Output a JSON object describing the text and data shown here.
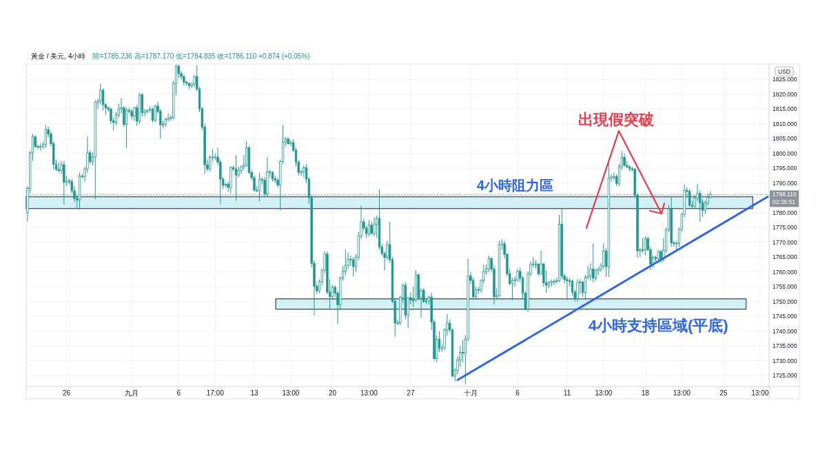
{
  "chart_data": {
    "type": "candlestick",
    "title": "黃金 / 美元, 4小時",
    "subtitle": "開=1785.236 高=1787.170 低=1784.835 收=1786.110 +0.874 (+0.05%)",
    "ylabel": "USD",
    "categories": [
      null,
      null,
      null,
      null,
      null,
      null,
      null,
      null,
      null,
      null,
      null,
      null,
      null,
      null,
      null,
      "26",
      null,
      null,
      null,
      null,
      null,
      null,
      null,
      null,
      null,
      null,
      null,
      null,
      null,
      null,
      null,
      null,
      null,
      null,
      null,
      null,
      null,
      null,
      null,
      null,
      "九月",
      null,
      null,
      null,
      null,
      null,
      null,
      null,
      null,
      null,
      null,
      null,
      null,
      null,
      null,
      null,
      null,
      null,
      "6",
      null,
      null,
      null,
      null,
      null,
      null,
      null,
      null,
      null,
      null,
      null,
      null,
      null,
      "17:00",
      null,
      null,
      null,
      null,
      null,
      null,
      null,
      null,
      null,
      null,
      null,
      null,
      null,
      null,
      "13",
      null,
      null,
      null,
      null,
      null,
      null,
      null,
      null,
      null,
      null,
      null,
      null,
      null,
      "13:00",
      null,
      null,
      null,
      null,
      null,
      null,
      null,
      null,
      null,
      null,
      null,
      null,
      null,
      null,
      null,
      "20",
      null,
      null,
      null,
      null,
      null,
      null,
      null,
      null,
      null,
      null,
      null,
      null,
      null,
      "13:00",
      null,
      null,
      null,
      null,
      null,
      null,
      null,
      null,
      null,
      null,
      null,
      null,
      null,
      null,
      null,
      "27",
      null,
      null,
      null,
      null,
      null,
      null,
      null,
      null,
      null,
      null,
      null,
      null,
      null,
      null,
      null,
      null,
      null,
      null,
      null,
      null,
      null,
      null,
      "十月",
      null,
      null,
      null,
      null,
      null,
      null,
      null,
      null,
      null,
      null,
      null,
      null,
      null,
      null,
      null,
      null,
      null,
      "6",
      null,
      null,
      null,
      null,
      null,
      null,
      null,
      null,
      null,
      null,
      null,
      null,
      null,
      null,
      null,
      null,
      null,
      null,
      "11",
      null,
      null,
      null,
      null,
      null,
      null,
      null,
      null,
      null,
      null,
      null,
      null,
      null,
      "13:00",
      null,
      null,
      null,
      null,
      null,
      null,
      null,
      null,
      null,
      null,
      null,
      null,
      null,
      null,
      null,
      "18",
      null,
      null,
      null,
      null,
      null,
      null,
      null,
      null,
      null,
      null,
      null,
      null,
      null,
      "13:00",
      null,
      null,
      null,
      null,
      null,
      null,
      null,
      null,
      null,
      null,
      null,
      null,
      null,
      null,
      null,
      "25",
      null,
      null,
      null,
      null,
      null,
      null,
      null,
      null,
      null,
      null,
      null,
      null,
      null,
      "13:00",
      null,
      null,
      null
    ],
    "ylim": [
      1721.3,
      1830.2
    ],
    "yticks": [
      {
        "value": 1725,
        "label": "1725.000"
      },
      {
        "value": 1730,
        "label": "1730.000"
      },
      {
        "value": 1735,
        "label": "1735.000"
      },
      {
        "value": 1740,
        "label": "1740.000"
      },
      {
        "value": 1745,
        "label": "1745.000"
      },
      {
        "value": 1750,
        "label": "1750.000"
      },
      {
        "value": 1755,
        "label": "1755.000"
      },
      {
        "value": 1760,
        "label": "1760.000"
      },
      {
        "value": 1765,
        "label": "1765.000"
      },
      {
        "value": 1770,
        "label": "1770.000"
      },
      {
        "value": 1775,
        "label": "1775.000"
      },
      {
        "value": 1780,
        "label": "1780.000"
      },
      {
        "value": 1785,
        "label": null
      },
      {
        "value": 1790,
        "label": "1790.000"
      },
      {
        "value": 1795,
        "label": "1795.000"
      },
      {
        "value": 1800,
        "label": "1800.000"
      },
      {
        "value": 1805,
        "label": "1805.000"
      },
      {
        "value": 1810,
        "label": "1810.000"
      },
      {
        "value": 1815,
        "label": "1815.000"
      },
      {
        "value": 1820,
        "label": "1820.000"
      },
      {
        "value": 1825,
        "label": "1825.000"
      }
    ],
    "grid": true,
    "bands": [
      {
        "axis": "y",
        "from": 1781.4,
        "to": 1785.4,
        "label": "4小時阻力區",
        "color": "#cdeff5"
      },
      {
        "axis": "y",
        "from": 1747.4,
        "to": 1750.9,
        "label": "4小時支持區域(平底)",
        "color": "#cdeff5"
      }
    ],
    "ref_lines": [
      {
        "axis": "y",
        "value": 1786.11,
        "label": "1786.110\n02:36:51",
        "color": "#8f929a",
        "line_style": "dotted"
      }
    ],
    "annotations": [
      "出現假突破"
    ],
    "series": [
      {
        "color": "#1d9890",
        "ohlc": [
          [
            1780,
            1789,
            1777,
            1788.2
          ],
          [
            1788.2,
            1800.8,
            1786.5,
            1800.2
          ],
          [
            1800.2,
            1806.6,
            1797.5,
            1805.6
          ],
          [
            1805.6,
            1806.2,
            1801.8,
            1802.4
          ],
          [
            1802.4,
            1803,
            1801.5,
            1802.2
          ],
          [
            1802.2,
            1803.5,
            1801,
            1802.4
          ],
          [
            1802.4,
            1804,
            1801.5,
            1803
          ],
          [
            1803,
            1809.7,
            1801.8,
            1808.1
          ],
          [
            1808.1,
            1809,
            1805.5,
            1806.6
          ],
          [
            1806.6,
            1807.5,
            1802.5,
            1803.3
          ],
          [
            1803.3,
            1804,
            1794.6,
            1796.3
          ],
          [
            1796.3,
            1798,
            1794.2,
            1794.6
          ],
          [
            1794.6,
            1797,
            1793.5,
            1794.2
          ],
          [
            1794.2,
            1797.5,
            1793,
            1796.2
          ],
          [
            1796.2,
            1797.5,
            1782.7,
            1790.3
          ],
          [
            1790.3,
            1792.5,
            1789,
            1790.7
          ],
          [
            1790.7,
            1791.5,
            1789.5,
            1790.5
          ],
          [
            1790.5,
            1791.5,
            1786.5,
            1787.4
          ],
          [
            1787.4,
            1789,
            1783.5,
            1784.8
          ],
          [
            1784.8,
            1786,
            1781.2,
            1784.3
          ],
          [
            1784.3,
            1793.5,
            1781,
            1792.4
          ],
          [
            1792.4,
            1793,
            1791.5,
            1792.2
          ],
          [
            1792.2,
            1795.5,
            1790.5,
            1794.8
          ],
          [
            1794.8,
            1805.7,
            1793.5,
            1800.2
          ],
          [
            1800.2,
            1801,
            1796.5,
            1797.3
          ],
          [
            1797.3,
            1800.5,
            1796,
            1798.8
          ],
          [
            1798.8,
            1818,
            1784.5,
            1817.3
          ],
          [
            1817.3,
            1818.5,
            1815,
            1817.7
          ],
          [
            1817.7,
            1823.5,
            1816.5,
            1821.3
          ],
          [
            1821.3,
            1822,
            1814.5,
            1816.5
          ],
          [
            1816.5,
            1817,
            1813,
            1815.4
          ],
          [
            1815.4,
            1816,
            1814,
            1815
          ],
          [
            1815,
            1815.5,
            1810,
            1811
          ],
          [
            1811,
            1812,
            1807.8,
            1810.5
          ],
          [
            1810.5,
            1814,
            1809.5,
            1813
          ],
          [
            1813,
            1816.8,
            1812,
            1815.1
          ],
          [
            1815.1,
            1818.7,
            1813.5,
            1815.4
          ],
          [
            1815.4,
            1816,
            1809,
            1809.8
          ],
          [
            1809.8,
            1815.5,
            1801.8,
            1814.6
          ],
          [
            1814.6,
            1815.5,
            1813.5,
            1814.2
          ],
          [
            1814.2,
            1815,
            1811.5,
            1812.6
          ],
          [
            1812.6,
            1815.8,
            1811,
            1815.4
          ],
          [
            1815.4,
            1816.5,
            1809.3,
            1810.9
          ],
          [
            1810.9,
            1820.5,
            1810,
            1819.8
          ],
          [
            1819.8,
            1820.5,
            1812.5,
            1813.8
          ],
          [
            1813.8,
            1815,
            1812.5,
            1814.2
          ],
          [
            1814.2,
            1815,
            1813.5,
            1814.6
          ],
          [
            1814.6,
            1816,
            1813.8,
            1815
          ],
          [
            1815,
            1815.5,
            1810.5,
            1811.2
          ],
          [
            1811.2,
            1816.5,
            1810.5,
            1816
          ],
          [
            1816,
            1817.5,
            1813.5,
            1814.2
          ],
          [
            1814.2,
            1815,
            1805,
            1809.7
          ],
          [
            1809.7,
            1811,
            1808.5,
            1809.9
          ],
          [
            1809.9,
            1812,
            1809,
            1811.5
          ],
          [
            1811.5,
            1813.5,
            1810.8,
            1811.9
          ],
          [
            1811.9,
            1813,
            1811,
            1812.1
          ],
          [
            1812.1,
            1824.5,
            1811.5,
            1823.7
          ],
          [
            1823.7,
            1830,
            1819.6,
            1829.5
          ],
          [
            1829.5,
            1830,
            1825.5,
            1827
          ],
          [
            1827,
            1827.8,
            1825,
            1826
          ],
          [
            1826,
            1826.5,
            1823,
            1824.1
          ],
          [
            1824.1,
            1824.5,
            1823,
            1823.7
          ],
          [
            1823.7,
            1824,
            1821.8,
            1822.9
          ],
          [
            1822.9,
            1824,
            1822,
            1823.5
          ],
          [
            1823.5,
            1826.5,
            1822.5,
            1826
          ],
          [
            1826,
            1829.8,
            1821,
            1821.8
          ],
          [
            1821.8,
            1822.5,
            1814,
            1815.1
          ],
          [
            1815.1,
            1815.8,
            1808,
            1808.9
          ],
          [
            1808.9,
            1810,
            1793,
            1796.2
          ],
          [
            1796.2,
            1798,
            1794,
            1794.8
          ],
          [
            1794.8,
            1799.5,
            1794,
            1798.7
          ],
          [
            1798.7,
            1801.5,
            1797.5,
            1798.8
          ],
          [
            1798.8,
            1800,
            1797.8,
            1798.8
          ],
          [
            1798.8,
            1802,
            1796,
            1797.1
          ],
          [
            1797.1,
            1798,
            1783,
            1791.3
          ],
          [
            1791.3,
            1792,
            1788,
            1789.3
          ],
          [
            1789.3,
            1790,
            1788.5,
            1789.6
          ],
          [
            1789.6,
            1790.5,
            1787,
            1788.5
          ],
          [
            1788.5,
            1795.8,
            1786.5,
            1795.2
          ],
          [
            1795.2,
            1796,
            1794,
            1794.8
          ],
          [
            1794.8,
            1799.5,
            1784,
            1792.7
          ],
          [
            1792.7,
            1795.5,
            1792,
            1794.2
          ],
          [
            1794.2,
            1796,
            1793,
            1795.5
          ],
          [
            1795.5,
            1799.5,
            1794.5,
            1796
          ],
          [
            1796,
            1804.2,
            1795.5,
            1801.9
          ],
          [
            1801.9,
            1802.5,
            1793,
            1793.6
          ],
          [
            1793.6,
            1794.5,
            1791,
            1791.8
          ],
          [
            1791.8,
            1792.5,
            1787,
            1787.6
          ],
          [
            1787.6,
            1789,
            1787,
            1787.4
          ],
          [
            1787.4,
            1793.5,
            1783.8,
            1791.3
          ],
          [
            1791.3,
            1792,
            1789.5,
            1791
          ],
          [
            1791,
            1792,
            1785.5,
            1786.3
          ],
          [
            1786.3,
            1798.8,
            1785.5,
            1793.8
          ],
          [
            1793.8,
            1794.5,
            1792,
            1793.6
          ],
          [
            1793.6,
            1794,
            1790.5,
            1791.5
          ],
          [
            1791.5,
            1792.5,
            1790,
            1791
          ],
          [
            1791,
            1791.8,
            1788.5,
            1789.3
          ],
          [
            1789.3,
            1798,
            1780.8,
            1797.3
          ],
          [
            1797.3,
            1809.7,
            1796.5,
            1803.9
          ],
          [
            1803.9,
            1805.5,
            1802.5,
            1804.9
          ],
          [
            1804.9,
            1805.5,
            1803,
            1803.3
          ],
          [
            1803.3,
            1804.5,
            1802.5,
            1803.7
          ],
          [
            1803.7,
            1804.8,
            1800.5,
            1801
          ],
          [
            1801,
            1802,
            1795.5,
            1797.1
          ],
          [
            1797.1,
            1797.8,
            1792.5,
            1793.6
          ],
          [
            1793.6,
            1794.5,
            1792.5,
            1793.8
          ],
          [
            1793.8,
            1796,
            1792,
            1795.2
          ],
          [
            1795.2,
            1796.5,
            1790,
            1791.3
          ],
          [
            1791.3,
            1792,
            1783,
            1785.1
          ],
          [
            1785.1,
            1785.8,
            1761.5,
            1762.9
          ],
          [
            1762.9,
            1764,
            1745.4,
            1755.1
          ],
          [
            1755.1,
            1756,
            1752.5,
            1753.6
          ],
          [
            1753.6,
            1757.5,
            1752.8,
            1756.7
          ],
          [
            1756.7,
            1761,
            1755.5,
            1760.6
          ],
          [
            1760.6,
            1767,
            1759.5,
            1766
          ],
          [
            1766,
            1767,
            1752.5,
            1753.2
          ],
          [
            1753.2,
            1757.5,
            1747.4,
            1751.7
          ],
          [
            1751.7,
            1755.5,
            1750.5,
            1754.8
          ],
          [
            1754.8,
            1755.5,
            1751.5,
            1752.8
          ],
          [
            1752.8,
            1753.5,
            1742.3,
            1748.9
          ],
          [
            1748.9,
            1758.5,
            1747.5,
            1757.9
          ],
          [
            1757.9,
            1762,
            1757,
            1760.2
          ],
          [
            1760.2,
            1767.4,
            1759,
            1762.2
          ],
          [
            1762.2,
            1766.5,
            1761,
            1764.3
          ],
          [
            1764.3,
            1765.5,
            1762,
            1764.1
          ],
          [
            1764.1,
            1765,
            1758.5,
            1761.8
          ],
          [
            1761.8,
            1766,
            1760,
            1764.9
          ],
          [
            1764.9,
            1773.5,
            1764,
            1772.1
          ],
          [
            1772.1,
            1782.3,
            1771,
            1776.9
          ],
          [
            1776.9,
            1778,
            1774,
            1774.8
          ],
          [
            1774.8,
            1775.5,
            1771.5,
            1772.9
          ],
          [
            1772.9,
            1777.5,
            1772,
            1775.8
          ],
          [
            1775.8,
            1777,
            1772.5,
            1773
          ],
          [
            1773,
            1778.5,
            1772,
            1776
          ],
          [
            1776,
            1779,
            1771.5,
            1778.1
          ],
          [
            1778.1,
            1787.8,
            1767.5,
            1768.4
          ],
          [
            1768.4,
            1769.5,
            1765.5,
            1766.2
          ],
          [
            1766.2,
            1767,
            1760.5,
            1764.9
          ],
          [
            1764.9,
            1770.5,
            1764,
            1769.2
          ],
          [
            1769.2,
            1776.9,
            1763,
            1764.1
          ],
          [
            1764.1,
            1765,
            1749.5,
            1750.1
          ],
          [
            1750.1,
            1751,
            1738.1,
            1742.7
          ],
          [
            1742.7,
            1744,
            1742,
            1742.8
          ],
          [
            1742.8,
            1752,
            1742,
            1751.4
          ],
          [
            1751.4,
            1756,
            1749.5,
            1755.5
          ],
          [
            1755.5,
            1756.5,
            1744,
            1745.4
          ],
          [
            1745.4,
            1751.5,
            1741,
            1751.3
          ],
          [
            1751.3,
            1753,
            1749,
            1750.5
          ],
          [
            1750.5,
            1755,
            1748,
            1750.4
          ],
          [
            1750.4,
            1760.5,
            1750,
            1759
          ],
          [
            1759,
            1759.5,
            1750.5,
            1751.3
          ],
          [
            1751.3,
            1754.5,
            1744.5,
            1753.8
          ],
          [
            1753.8,
            1754.5,
            1749.5,
            1750
          ],
          [
            1750,
            1751,
            1749,
            1750.1
          ],
          [
            1750.1,
            1752,
            1749,
            1751.5
          ],
          [
            1751.5,
            1753,
            1740.4,
            1743.1
          ],
          [
            1743.1,
            1744,
            1730,
            1730.7
          ],
          [
            1730.7,
            1738.5,
            1729.5,
            1737.3
          ],
          [
            1737.3,
            1740,
            1733,
            1734.2
          ],
          [
            1734.2,
            1735.5,
            1733,
            1734.3
          ],
          [
            1734.3,
            1741,
            1733.5,
            1740.4
          ],
          [
            1740.4,
            1745.8,
            1738.5,
            1742.7
          ],
          [
            1742.7,
            1744,
            1739.5,
            1740.4
          ],
          [
            1740.4,
            1741,
            1724.5,
            1724.8
          ],
          [
            1724.8,
            1727.5,
            1723,
            1726.8
          ],
          [
            1726.8,
            1731.5,
            1725.5,
            1730.3
          ],
          [
            1730.3,
            1735,
            1728,
            1732.8
          ],
          [
            1732.8,
            1737,
            1729.5,
            1732.5
          ],
          [
            1732.5,
            1738.5,
            1722,
            1737.3
          ],
          [
            1737.3,
            1764.5,
            1736.5,
            1758.6
          ],
          [
            1758.6,
            1760,
            1756,
            1757.1
          ],
          [
            1757.1,
            1758,
            1750.5,
            1751.6
          ],
          [
            1751.6,
            1755,
            1750.5,
            1754
          ],
          [
            1754,
            1755,
            1752.5,
            1753.8
          ],
          [
            1753.8,
            1757.5,
            1753,
            1757.1
          ],
          [
            1757.1,
            1762.5,
            1756,
            1760
          ],
          [
            1760,
            1762.5,
            1759,
            1761
          ],
          [
            1761,
            1765.5,
            1760,
            1764.5
          ],
          [
            1764.5,
            1765,
            1760,
            1761
          ],
          [
            1761,
            1762,
            1749,
            1751.6
          ],
          [
            1751.6,
            1754.5,
            1751,
            1752
          ],
          [
            1752,
            1770.5,
            1751.5,
            1769.1
          ],
          [
            1769.1,
            1771,
            1767.5,
            1769.5
          ],
          [
            1769.5,
            1770.5,
            1764.5,
            1765.9
          ],
          [
            1765.9,
            1766.5,
            1758.5,
            1759.4
          ],
          [
            1759.4,
            1761,
            1755.5,
            1756.1
          ],
          [
            1756.1,
            1758,
            1750.5,
            1757.1
          ],
          [
            1757.1,
            1758.5,
            1755,
            1757.3
          ],
          [
            1757.3,
            1761,
            1756.5,
            1760.2
          ],
          [
            1760.2,
            1761.5,
            1756.5,
            1757.9
          ],
          [
            1757.9,
            1758.5,
            1751,
            1752.8
          ],
          [
            1752.8,
            1753.5,
            1747,
            1747.4
          ],
          [
            1747.4,
            1760,
            1746.5,
            1759.4
          ],
          [
            1759.4,
            1763.5,
            1758.5,
            1762.5
          ],
          [
            1762.5,
            1765,
            1761.5,
            1762.7
          ],
          [
            1762.7,
            1764,
            1761,
            1762.6
          ],
          [
            1762.6,
            1763,
            1758.5,
            1759.4
          ],
          [
            1759.4,
            1767.2,
            1759,
            1762.7
          ],
          [
            1762.7,
            1763,
            1755,
            1756.3
          ],
          [
            1756.3,
            1760.5,
            1753,
            1755.5
          ],
          [
            1755.5,
            1757,
            1754.5,
            1756.3
          ],
          [
            1756.3,
            1757.5,
            1755,
            1756.7
          ],
          [
            1756.7,
            1757.5,
            1755.5,
            1756.8
          ],
          [
            1756.8,
            1758,
            1756,
            1757
          ],
          [
            1757,
            1779.2,
            1756.5,
            1776.1
          ],
          [
            1776.1,
            1781.6,
            1757.5,
            1758.6
          ],
          [
            1758.6,
            1759.5,
            1756,
            1757.4
          ],
          [
            1757.4,
            1758.5,
            1750.5,
            1757
          ],
          [
            1757,
            1758,
            1755,
            1756.9
          ],
          [
            1756.9,
            1757.5,
            1752,
            1753.2
          ],
          [
            1753.2,
            1754,
            1750,
            1750.9
          ],
          [
            1750.9,
            1757.5,
            1750,
            1756.5
          ],
          [
            1756.5,
            1757.5,
            1752.5,
            1756.6
          ],
          [
            1756.6,
            1757,
            1751.5,
            1753
          ],
          [
            1753,
            1759,
            1750.5,
            1758.2
          ],
          [
            1758.2,
            1762,
            1757.5,
            1758.6
          ],
          [
            1758.6,
            1763,
            1757,
            1761
          ],
          [
            1761,
            1769.5,
            1756.5,
            1757.9
          ],
          [
            1757.9,
            1761,
            1757,
            1760.5
          ],
          [
            1760.5,
            1761.5,
            1759,
            1761
          ],
          [
            1761,
            1763,
            1760,
            1762
          ],
          [
            1762,
            1769.5,
            1761,
            1767
          ],
          [
            1767,
            1768,
            1758.3,
            1761.8
          ],
          [
            1761.8,
            1796.7,
            1758.3,
            1791.7
          ],
          [
            1791.7,
            1793,
            1790.5,
            1792.1
          ],
          [
            1792.1,
            1793.5,
            1791,
            1792.2
          ],
          [
            1792.2,
            1793,
            1789,
            1789.9
          ],
          [
            1789.9,
            1796.5,
            1789,
            1795.5
          ],
          [
            1795.5,
            1800.8,
            1794.5,
            1798.7
          ],
          [
            1798.7,
            1800,
            1795.5,
            1796
          ],
          [
            1796,
            1797.5,
            1795,
            1795.5
          ],
          [
            1795.5,
            1796,
            1794,
            1794.8
          ],
          [
            1794.8,
            1795.5,
            1794,
            1794.7
          ],
          [
            1794.7,
            1795,
            1785,
            1785.9
          ],
          [
            1785.9,
            1786.5,
            1764.9,
            1767.1
          ],
          [
            1767.1,
            1768,
            1765,
            1767.5
          ],
          [
            1767.5,
            1771.5,
            1766.5,
            1767.4
          ],
          [
            1767.4,
            1772,
            1765.5,
            1771.3
          ],
          [
            1771.3,
            1772,
            1767,
            1767.5
          ],
          [
            1767.5,
            1768.5,
            1760.6,
            1762.6
          ],
          [
            1762.6,
            1765.5,
            1761.5,
            1764.9
          ],
          [
            1764.9,
            1765.5,
            1763.5,
            1764.5
          ],
          [
            1764.5,
            1767.5,
            1763.5,
            1766.9
          ],
          [
            1766.9,
            1767.5,
            1763,
            1764.5
          ],
          [
            1764.5,
            1771.5,
            1763.5,
            1767.3
          ],
          [
            1767.3,
            1775,
            1766.5,
            1774.3
          ],
          [
            1774.3,
            1782.8,
            1773.5,
            1781.3
          ],
          [
            1781.3,
            1785.4,
            1768.5,
            1769.8
          ],
          [
            1769.8,
            1770.5,
            1768.5,
            1769.6
          ],
          [
            1769.6,
            1770.5,
            1767.5,
            1769.7
          ],
          [
            1769.7,
            1774.8,
            1768.5,
            1774.5
          ],
          [
            1774.5,
            1780,
            1773.5,
            1779.5
          ],
          [
            1779.5,
            1789.5,
            1778.5,
            1787.5
          ],
          [
            1787.5,
            1788.5,
            1785.5,
            1787.2
          ],
          [
            1787.2,
            1788,
            1782,
            1782.5
          ],
          [
            1782.5,
            1784,
            1781.5,
            1782.2
          ],
          [
            1782.2,
            1786,
            1781.5,
            1785
          ],
          [
            1785,
            1789.7,
            1784,
            1786.5
          ],
          [
            1786.5,
            1787.5,
            1776.9,
            1783.4
          ],
          [
            1783.4,
            1784.5,
            1778.5,
            1780.8
          ],
          [
            1780.8,
            1784,
            1779.5,
            1783.3
          ],
          [
            1783.3,
            1786.5,
            1782.5,
            1785.2
          ],
          [
            1785.236,
            1787.17,
            1784.835,
            1786.11
          ],
          null,
          null,
          null,
          null,
          null,
          null,
          null,
          null,
          null,
          null,
          null,
          null,
          null,
          null,
          null,
          null,
          null,
          null,
          null,
          null,
          null,
          null
        ]
      },
      {
        "type": "line",
        "color": "#2962ff",
        "values": [
          null,
          null,
          null,
          null,
          null,
          null,
          null,
          null,
          null,
          null,
          null,
          null,
          null,
          null,
          null,
          null,
          null,
          null,
          null,
          null,
          null,
          null,
          null,
          null,
          null,
          null,
          null,
          null,
          null,
          null,
          null,
          null,
          null,
          null,
          null,
          null,
          null,
          null,
          null,
          null,
          null,
          null,
          null,
          null,
          null,
          null,
          null,
          null,
          null,
          null,
          null,
          null,
          null,
          null,
          null,
          null,
          null,
          null,
          null,
          null,
          null,
          null,
          null,
          null,
          null,
          null,
          null,
          null,
          null,
          null,
          null,
          null,
          null,
          null,
          null,
          null,
          null,
          null,
          null,
          null,
          null,
          null,
          null,
          null,
          null,
          null,
          null,
          null,
          null,
          null,
          null,
          null,
          null,
          null,
          null,
          null,
          null,
          null,
          null,
          null,
          null,
          null,
          null,
          null,
          null,
          null,
          null,
          null,
          null,
          null,
          null,
          null,
          null,
          null,
          null,
          null,
          null,
          null,
          null,
          null,
          null,
          null,
          null,
          null,
          null,
          null,
          null,
          null,
          null,
          null,
          null,
          null,
          null,
          null,
          null,
          null,
          null,
          null,
          null,
          null,
          null,
          null,
          null,
          null,
          null,
          null,
          null,
          null,
          null,
          null,
          null,
          null,
          null,
          null,
          null,
          null,
          null,
          null,
          null,
          null,
          null,
          null,
          null,
          null,
          null,
          1723.5,
          null,
          null,
          null,
          null,
          null,
          null,
          null,
          null,
          null,
          null,
          null,
          null,
          null,
          null,
          null,
          null,
          null,
          null,
          null,
          null,
          null,
          null,
          null,
          null,
          null,
          null,
          null,
          null,
          null,
          null,
          null,
          null,
          null,
          null,
          null,
          null,
          null,
          null,
          null,
          null,
          null,
          null,
          null,
          null,
          null,
          null,
          null,
          null,
          null,
          null,
          null,
          null,
          null,
          null,
          null,
          null,
          null,
          null,
          null,
          null,
          null,
          null,
          null,
          null,
          null,
          null,
          null,
          null,
          null,
          null,
          null,
          null,
          null,
          null,
          null,
          null,
          null,
          null,
          null,
          null,
          null,
          null,
          null,
          null,
          null,
          null,
          null,
          null,
          null,
          null,
          null,
          null,
          null,
          null,
          null,
          null,
          null,
          null,
          null,
          null,
          null,
          null,
          null,
          null,
          null,
          null,
          null,
          null,
          null,
          null,
          null,
          null,
          null,
          null,
          null,
          null,
          null,
          null,
          1785.4
        ]
      }
    ]
  }
}
